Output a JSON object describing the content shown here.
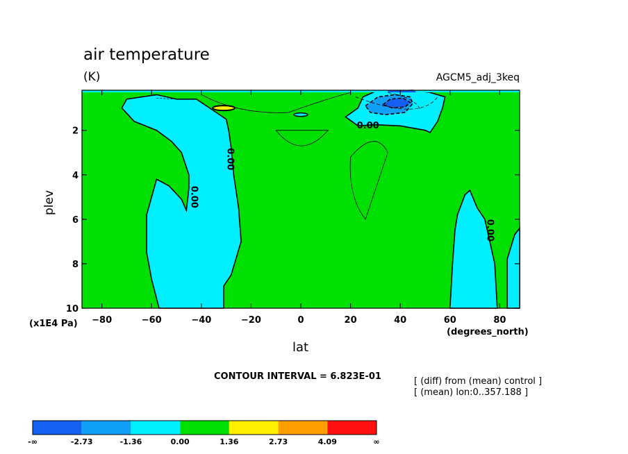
{
  "chart_data": {
    "type": "contour",
    "title": "air temperature",
    "units": "(K)",
    "run_label": "AGCM5_adj_3keq",
    "xlabel": "lat",
    "xunits": "(degrees_north)",
    "ylabel": "plev",
    "yunits": "(x1E4 Pa)",
    "xlim": [
      -88,
      88
    ],
    "ylim": [
      10,
      0.2
    ],
    "x_ticks": [
      -80,
      -60,
      -40,
      -20,
      0,
      20,
      40,
      60,
      80
    ],
    "y_ticks": [
      2,
      4,
      6,
      8,
      10
    ],
    "contour_interval_text": "CONTOUR INTERVAL = 6.823E-01",
    "contour_label": "0.00",
    "notes": [
      "[ (diff) from (mean) control ]",
      "[ (mean) lon:0..357.188 ]"
    ],
    "colorbar": {
      "labels": [
        "-∞",
        "-2.73",
        "-1.36",
        "0.00",
        "1.36",
        "2.73",
        "4.09",
        "∞"
      ],
      "colors": [
        "#1560f0",
        "#10a0f8",
        "#00f0ff",
        "#00e000",
        "#fff000",
        "#ffa000",
        "#ff1010"
      ]
    },
    "regions": [
      {
        "name": "southern-cyan-band",
        "range": "-1.36..0.00",
        "points": [
          [
            -70,
            0.6
          ],
          [
            -58,
            0.4
          ],
          [
            -50,
            0.6
          ],
          [
            -42,
            0.6
          ],
          [
            -34,
            1.2
          ],
          [
            -30,
            1.5
          ],
          [
            -29,
            2.0
          ],
          [
            -28,
            2.8
          ],
          [
            -27,
            4.0
          ],
          [
            -25,
            5.5
          ],
          [
            -24,
            7.0
          ],
          [
            -28,
            8.5
          ],
          [
            -31,
            9.0
          ],
          [
            -31,
            10
          ],
          [
            -57,
            10
          ],
          [
            -60,
            8.7
          ],
          [
            -62,
            7.5
          ],
          [
            -62,
            5.8
          ],
          [
            -58,
            4.2
          ],
          [
            -53,
            4.5
          ],
          [
            -48,
            5.1
          ],
          [
            -46,
            5.6
          ],
          [
            -45,
            4.6
          ],
          [
            -45,
            4.0
          ],
          [
            -48,
            3.0
          ],
          [
            -52,
            2.5
          ],
          [
            -58,
            2.0
          ],
          [
            -67,
            1.6
          ],
          [
            -72,
            1.0
          ]
        ]
      },
      {
        "name": "northern-cyan-upper",
        "range": "-1.36..0.00",
        "points": [
          [
            18,
            1.4
          ],
          [
            23,
            1.0
          ],
          [
            25,
            0.5
          ],
          [
            30,
            0.25
          ],
          [
            45,
            0.2
          ],
          [
            52,
            0.3
          ],
          [
            58,
            0.5
          ],
          [
            57,
            1.0
          ],
          [
            55,
            1.6
          ],
          [
            52,
            2.1
          ],
          [
            50,
            2.0
          ],
          [
            40,
            1.8
          ],
          [
            30,
            1.75
          ],
          [
            23,
            1.8
          ]
        ]
      },
      {
        "name": "northern-cyan-lower",
        "range": "-1.36..0.00",
        "points": [
          [
            60,
            10
          ],
          [
            61,
            8.0
          ],
          [
            62,
            6.5
          ],
          [
            63,
            5.8
          ],
          [
            66,
            4.9
          ],
          [
            68,
            4.7
          ],
          [
            71,
            5.5
          ],
          [
            74,
            6.0
          ],
          [
            78,
            8.0
          ],
          [
            79,
            10
          ]
        ]
      },
      {
        "name": "far-north-cyan",
        "range": "-1.36..0.00",
        "points": [
          [
            83,
            10
          ],
          [
            83,
            7.8
          ],
          [
            86,
            6.7
          ],
          [
            88,
            6.4
          ],
          [
            88,
            10
          ]
        ]
      },
      {
        "name": "blue-core",
        "range": "-2.73..-1.36",
        "points": [
          [
            26,
            0.9
          ],
          [
            31,
            0.5
          ],
          [
            38,
            0.4
          ],
          [
            44,
            0.5
          ],
          [
            45,
            0.8
          ],
          [
            42,
            1.2
          ],
          [
            34,
            1.3
          ],
          [
            28,
            1.2
          ]
        ]
      },
      {
        "name": "deep-blue-core",
        "range": "<-2.73",
        "points": [
          [
            33,
            0.85
          ],
          [
            36,
            0.6
          ],
          [
            41,
            0.55
          ],
          [
            44,
            0.75
          ],
          [
            42,
            0.95
          ],
          [
            37,
            1.0
          ]
        ]
      }
    ]
  }
}
